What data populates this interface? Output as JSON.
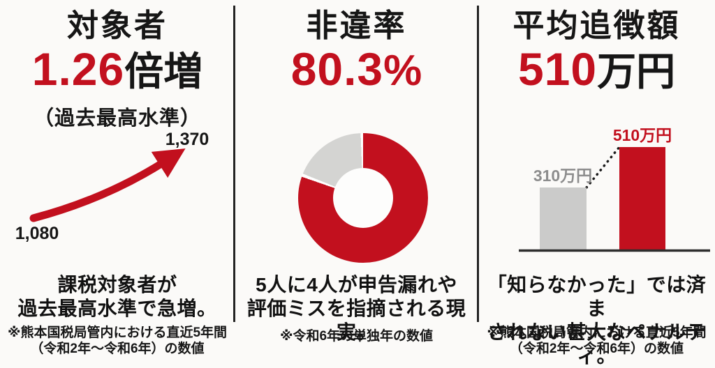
{
  "colors": {
    "accent_red": "#c2101e",
    "ink_black": "#161616",
    "donut_gray": "#d4d4d2",
    "bar_gray": "#cbcbca",
    "gray_label": "#8d8d8d",
    "background": "#fbfaf8"
  },
  "panels": {
    "subjects": {
      "title": "対象者",
      "stat_value": "1.26",
      "stat_unit": "倍増",
      "stat_note": "（過去最高水準）",
      "description_line1": "課税対象者が",
      "description_line2": "過去最高水準で急増。",
      "footnote_line1": "※熊本国税局管内における直近5年間",
      "footnote_line2": "（令和2年～令和6年）の数値"
    },
    "violation": {
      "title": "非違率",
      "stat_value": "80.3",
      "stat_unit": "%",
      "description_line1": "5人に4人が申告漏れや",
      "description_line2": "評価ミスを指摘される現実。",
      "footnote_line1": "※令和6年の単独年の数値"
    },
    "penalty": {
      "title": "平均追徴額",
      "stat_value": "510",
      "stat_unit": "万円",
      "description_line1": "「知らなかった」では済ま",
      "description_line2": "されない甚大なペナルティ。",
      "footnote_line1": "※熊本国税局管内における直近5年間",
      "footnote_line2": "（令和2年～令和6年）の数値"
    }
  },
  "chart_data": [
    {
      "type": "line",
      "style": "trend-arrow",
      "title": "対象者 1.26倍増（過去最高水準）",
      "values": [
        1080,
        1370
      ],
      "labels": [
        "1,080",
        "1,370"
      ],
      "color": "#c2101e",
      "note": "rising red arrow from 1,080 (bottom-left) to 1,370 (top-right)"
    },
    {
      "type": "pie",
      "style": "donut",
      "title": "非違率 80.3%",
      "segments": [
        {
          "value": 80.3,
          "color": "#c2101e"
        },
        {
          "value": 19.7,
          "color": "#d4d4d2"
        }
      ],
      "start": "top, clockwise",
      "note": "red = 80.3%, remainder gray, white hole center"
    },
    {
      "type": "bar",
      "title": "平均追徴額 510万円",
      "categories": [
        "310万円",
        "510万円"
      ],
      "values": [
        310,
        510
      ],
      "bar_colors": [
        "#cbcbca",
        "#c2101e"
      ],
      "label_colors": [
        "#8d8d8d",
        "#c2101e"
      ],
      "note": "dotted black line connects bar tops; dark baseline"
    }
  ]
}
